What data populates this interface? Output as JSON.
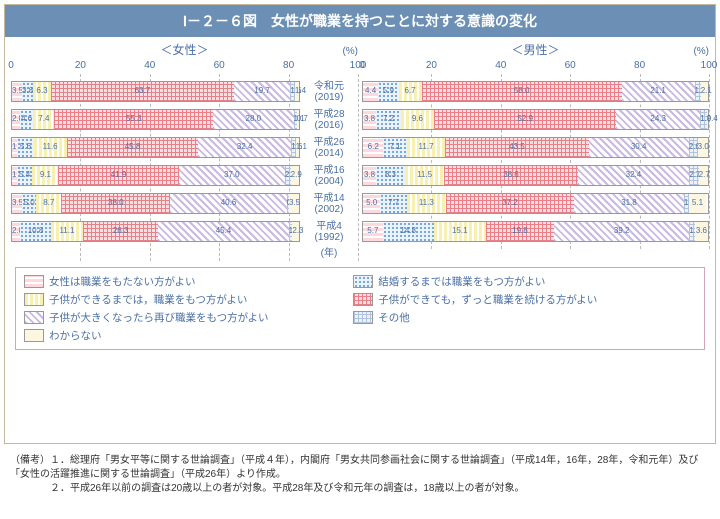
{
  "title": "Ⅰ－２－６図　女性が職業を持つことに対する意識の変化",
  "panels": [
    {
      "label": "＜女性＞",
      "rows": [
        {
          "year": "令和元",
          "sub": "(2019)",
          "vals": [
            3.5,
            3.8,
            6.3,
            63.7,
            19.7,
            1.6,
            1.4
          ]
        },
        {
          "year": "平成28",
          "sub": "(2016)",
          "vals": [
            2.8,
            4.6,
            7.4,
            55.3,
            28.0,
            1.1,
            0.7
          ]
        },
        {
          "year": "平成26",
          "sub": "(2014)",
          "vals": [
            1.9,
            5.6,
            11.6,
            45.8,
            32.4,
            1.6,
            1.1
          ]
        },
        {
          "year": "平成16",
          "sub": "(2004)",
          "vals": [
            1.7,
            5.4,
            9.1,
            41.9,
            37.0,
            2.0,
            2.9
          ]
        },
        {
          "year": "平成14",
          "sub": "(2002)",
          "vals": [
            3.5,
            5.0,
            8.7,
            38.0,
            40.6,
            0.8,
            3.5
          ]
        },
        {
          "year": "平成4",
          "sub": "(1992)",
          "vals": [
            2.8,
            10.8,
            11.1,
            26.3,
            45.4,
            1.3,
            2.3
          ]
        }
      ]
    },
    {
      "label": "＜男性＞",
      "rows": [
        {
          "year": "令和元",
          "sub": "(2019)",
          "vals": [
            4.4,
            5.9,
            6.7,
            58.0,
            21.1,
            1.8,
            2.1
          ]
        },
        {
          "year": "平成28",
          "sub": "(2016)",
          "vals": [
            3.8,
            7.2,
            9.6,
            52.9,
            24.3,
            1.9,
            0.4
          ]
        },
        {
          "year": "平成26",
          "sub": "(2014)",
          "vals": [
            6.2,
            7.1,
            11.7,
            43.5,
            30.4,
            2.6,
            3.0
          ]
        },
        {
          "year": "平成16",
          "sub": "(2004)",
          "vals": [
            3.8,
            8.3,
            11.5,
            38.6,
            32.4,
            2.7,
            2.7
          ]
        },
        {
          "year": "平成14",
          "sub": "(2002)",
          "vals": [
            5.0,
            7.7,
            11.3,
            37.2,
            31.8,
            1.4,
            5.1
          ]
        },
        {
          "year": "平成4",
          "sub": "(1992)",
          "vals": [
            5.7,
            14.8,
            15.1,
            19.8,
            39.2,
            1.7,
            3.6
          ]
        }
      ]
    }
  ],
  "yearUnit": "(年)",
  "ticks": [
    0,
    20,
    40,
    60,
    80,
    100
  ],
  "pctLabel": "(%)",
  "patterns": [
    "p-pink",
    "p-blue",
    "p-yellow",
    "p-red",
    "p-lav",
    "p-grey",
    "p-cream"
  ],
  "legend": [
    {
      "p": "p-pink",
      "t": "女性は職業をもたない方がよい"
    },
    {
      "p": "p-blue",
      "t": "結婚するまでは職業をもつ方がよい"
    },
    {
      "p": "p-yellow",
      "t": "子供ができるまでは，職業をもつ方がよい"
    },
    {
      "p": "p-red",
      "t": "子供ができても，ずっと職業を続ける方がよい"
    },
    {
      "p": "p-lav",
      "t": "子供が大きくなったら再び職業をもつ方がよい"
    },
    {
      "p": "p-grey",
      "t": "その他"
    },
    {
      "p": "p-cream",
      "t": "わからない"
    }
  ],
  "notes": [
    "（備考）１．総理府「男女平等に関する世論調査」（平成４年），内閣府「男女共同参画社会に関する世論調査」（平成14年，16年，28年，令和元年）及び「女性の活躍推進に関する世論調査」（平成26年）より作成。",
    "　　　　２．平成26年以前の調査は20歳以上の者が対象。平成28年及び令和元年の調査は，18歳以上の者が対象。"
  ]
}
